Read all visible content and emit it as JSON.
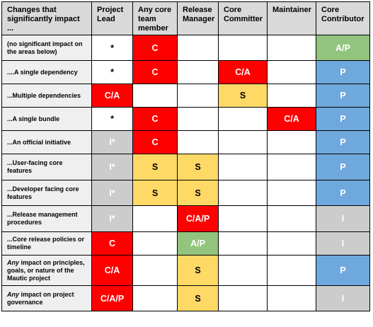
{
  "headers": [
    "Changes that significantly impact ...",
    "Project Lead",
    "Any core team member",
    "Release Manager",
    "Core Committer",
    "Maintainer",
    "Core Contributor"
  ],
  "rows": [
    {
      "label_pre": "",
      "label_rest": "(no significant impact on the areas below)",
      "cells": [
        {
          "text": "*",
          "color": "white"
        },
        {
          "text": "C",
          "color": "red"
        },
        {
          "text": "",
          "color": "white"
        },
        {
          "text": "",
          "color": "white"
        },
        {
          "text": "",
          "color": "white"
        },
        {
          "text": "A/P",
          "color": "green"
        }
      ]
    },
    {
      "label_pre": "",
      "label_rest": "....A single dependency",
      "cells": [
        {
          "text": "*",
          "color": "white"
        },
        {
          "text": "C",
          "color": "red"
        },
        {
          "text": "",
          "color": "white"
        },
        {
          "text": "C/A",
          "color": "red"
        },
        {
          "text": "",
          "color": "white"
        },
        {
          "text": "P",
          "color": "blue"
        }
      ]
    },
    {
      "label_pre": "",
      "label_rest": "...Multiple dependencies",
      "cells": [
        {
          "text": "C/A",
          "color": "red"
        },
        {
          "text": "",
          "color": "white"
        },
        {
          "text": "",
          "color": "white"
        },
        {
          "text": "S",
          "color": "yellow"
        },
        {
          "text": "",
          "color": "white"
        },
        {
          "text": "P",
          "color": "blue"
        }
      ]
    },
    {
      "label_pre": "",
      "label_rest": "...A single bundle",
      "cells": [
        {
          "text": "*",
          "color": "white"
        },
        {
          "text": "C",
          "color": "red"
        },
        {
          "text": "",
          "color": "white"
        },
        {
          "text": "",
          "color": "white"
        },
        {
          "text": "C/A",
          "color": "red"
        },
        {
          "text": "P",
          "color": "blue"
        }
      ]
    },
    {
      "label_pre": "",
      "label_rest": "...An official initiative",
      "cells": [
        {
          "text": "I*",
          "color": "gray"
        },
        {
          "text": "C",
          "color": "red"
        },
        {
          "text": "",
          "color": "white"
        },
        {
          "text": "",
          "color": "white"
        },
        {
          "text": "",
          "color": "white"
        },
        {
          "text": "P",
          "color": "blue"
        }
      ]
    },
    {
      "label_pre": "",
      "label_rest": "...User-facing core features",
      "cells": [
        {
          "text": "I*",
          "color": "gray"
        },
        {
          "text": "S",
          "color": "yellow"
        },
        {
          "text": "S",
          "color": "yellow"
        },
        {
          "text": "",
          "color": "white"
        },
        {
          "text": "",
          "color": "white"
        },
        {
          "text": "P",
          "color": "blue"
        }
      ]
    },
    {
      "label_pre": "",
      "label_rest": "...Developer facing core features",
      "cells": [
        {
          "text": "I*",
          "color": "gray"
        },
        {
          "text": "S",
          "color": "yellow"
        },
        {
          "text": "S",
          "color": "yellow"
        },
        {
          "text": "",
          "color": "white"
        },
        {
          "text": "",
          "color": "white"
        },
        {
          "text": "P",
          "color": "blue"
        }
      ]
    },
    {
      "label_pre": "",
      "label_rest": "...Release management procedures",
      "cells": [
        {
          "text": "I*",
          "color": "gray"
        },
        {
          "text": "",
          "color": "white"
        },
        {
          "text": "C/A/P",
          "color": "red"
        },
        {
          "text": "",
          "color": "white"
        },
        {
          "text": "",
          "color": "white"
        },
        {
          "text": "I",
          "color": "gray"
        }
      ]
    },
    {
      "label_pre": "",
      "label_rest": "...Core release policies or timeline",
      "cells": [
        {
          "text": "C",
          "color": "red"
        },
        {
          "text": "",
          "color": "white"
        },
        {
          "text": "A/P",
          "color": "green"
        },
        {
          "text": "",
          "color": "white"
        },
        {
          "text": "",
          "color": "white"
        },
        {
          "text": "I",
          "color": "gray"
        }
      ]
    },
    {
      "label_pre": "Any",
      "label_rest": " impact on principles, goals, or nature of the Mautic project",
      "cells": [
        {
          "text": "C/A",
          "color": "red"
        },
        {
          "text": "",
          "color": "white"
        },
        {
          "text": "S",
          "color": "yellow"
        },
        {
          "text": "",
          "color": "white"
        },
        {
          "text": "",
          "color": "white"
        },
        {
          "text": "P",
          "color": "blue"
        }
      ]
    },
    {
      "label_pre": "Any",
      "label_rest": " impact on project governance",
      "cells": [
        {
          "text": "C/A/P",
          "color": "red"
        },
        {
          "text": "",
          "color": "white"
        },
        {
          "text": "S",
          "color": "yellow"
        },
        {
          "text": "",
          "color": "white"
        },
        {
          "text": "",
          "color": "white"
        },
        {
          "text": "I",
          "color": "gray"
        }
      ]
    }
  ]
}
